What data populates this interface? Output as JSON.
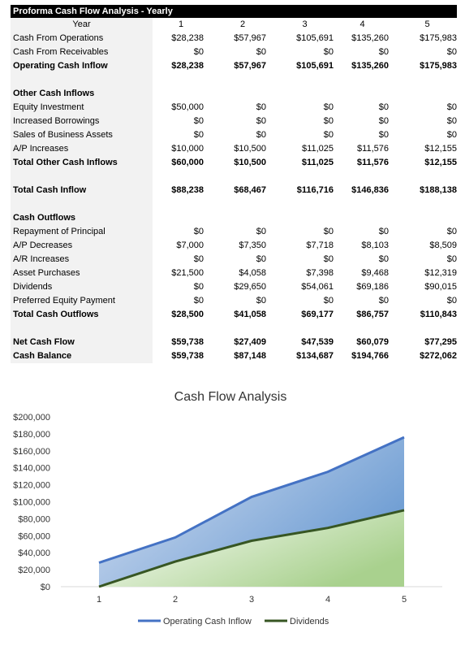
{
  "table": {
    "title": "Proforma Cash Flow Analysis - Yearly",
    "header": {
      "label": "Year",
      "cols": [
        "1",
        "2",
        "3",
        "4",
        "5"
      ]
    },
    "rows": [
      {
        "label": "Cash From Operations",
        "values": [
          "$28,238",
          "$57,967",
          "$105,691",
          "$135,260",
          "$175,983"
        ],
        "bold": false
      },
      {
        "label": "Cash From Receivables",
        "values": [
          "$0",
          "$0",
          "$0",
          "$0",
          "$0"
        ],
        "bold": false
      },
      {
        "label": "Operating Cash Inflow",
        "values": [
          "$28,238",
          "$57,967",
          "$105,691",
          "$135,260",
          "$175,983"
        ],
        "bold": true
      },
      {
        "label": "",
        "values": [],
        "bold": false
      },
      {
        "label": "Other Cash Inflows",
        "values": [],
        "bold": true
      },
      {
        "label": "Equity Investment",
        "values": [
          "$50,000",
          "$0",
          "$0",
          "$0",
          "$0"
        ],
        "bold": false
      },
      {
        "label": "Increased Borrowings",
        "values": [
          "$0",
          "$0",
          "$0",
          "$0",
          "$0"
        ],
        "bold": false
      },
      {
        "label": "Sales of Business Assets",
        "values": [
          "$0",
          "$0",
          "$0",
          "$0",
          "$0"
        ],
        "bold": false
      },
      {
        "label": "A/P Increases",
        "values": [
          "$10,000",
          "$10,500",
          "$11,025",
          "$11,576",
          "$12,155"
        ],
        "bold": false
      },
      {
        "label": "Total Other Cash Inflows",
        "values": [
          "$60,000",
          "$10,500",
          "$11,025",
          "$11,576",
          "$12,155"
        ],
        "bold": true
      },
      {
        "label": "",
        "values": [],
        "bold": false
      },
      {
        "label": "Total Cash Inflow",
        "values": [
          "$88,238",
          "$68,467",
          "$116,716",
          "$146,836",
          "$188,138"
        ],
        "bold": true
      },
      {
        "label": "",
        "values": [],
        "bold": false
      },
      {
        "label": "Cash Outflows",
        "values": [],
        "bold": true
      },
      {
        "label": "Repayment of Principal",
        "values": [
          "$0",
          "$0",
          "$0",
          "$0",
          "$0"
        ],
        "bold": false
      },
      {
        "label": "A/P Decreases",
        "values": [
          "$7,000",
          "$7,350",
          "$7,718",
          "$8,103",
          "$8,509"
        ],
        "bold": false
      },
      {
        "label": "A/R Increases",
        "values": [
          "$0",
          "$0",
          "$0",
          "$0",
          "$0"
        ],
        "bold": false
      },
      {
        "label": "Asset Purchases",
        "values": [
          "$21,500",
          "$4,058",
          "$7,398",
          "$9,468",
          "$12,319"
        ],
        "bold": false
      },
      {
        "label": "Dividends",
        "values": [
          "$0",
          "$29,650",
          "$54,061",
          "$69,186",
          "$90,015"
        ],
        "bold": false
      },
      {
        "label": "Preferred Equity Payment",
        "values": [
          "$0",
          "$0",
          "$0",
          "$0",
          "$0"
        ],
        "bold": false
      },
      {
        "label": "Total Cash Outflows",
        "values": [
          "$28,500",
          "$41,058",
          "$69,177",
          "$86,757",
          "$110,843"
        ],
        "bold": true
      },
      {
        "label": "",
        "values": [],
        "bold": false
      },
      {
        "label": "Net Cash Flow",
        "values": [
          "$59,738",
          "$27,409",
          "$47,539",
          "$60,079",
          "$77,295"
        ],
        "bold": true
      },
      {
        "label": "Cash Balance",
        "values": [
          "$59,738",
          "$87,148",
          "$134,687",
          "$194,766",
          "$272,062"
        ],
        "bold": true
      }
    ]
  },
  "chart_data": {
    "type": "area",
    "title": "Cash Flow Analysis",
    "categories": [
      "1",
      "2",
      "3",
      "4",
      "5"
    ],
    "y_ticks": [
      "$0",
      "$20,000",
      "$40,000",
      "$60,000",
      "$80,000",
      "$100,000",
      "$120,000",
      "$140,000",
      "$160,000",
      "$180,000",
      "$200,000"
    ],
    "ylim": [
      0,
      200000
    ],
    "grid": false,
    "legend_position": "bottom",
    "series": [
      {
        "name": "Operating Cash Inflow",
        "values": [
          28238,
          57967,
          105691,
          135260,
          175983
        ],
        "color": "#4472c4",
        "fill_light": "#dae3f3",
        "fill_dark": "#6b9bd2"
      },
      {
        "name": "Dividends",
        "values": [
          0,
          29650,
          54061,
          69186,
          90015
        ],
        "color": "#375623",
        "fill_light": "#ffffff",
        "fill_dark": "#a9d18e"
      }
    ]
  }
}
